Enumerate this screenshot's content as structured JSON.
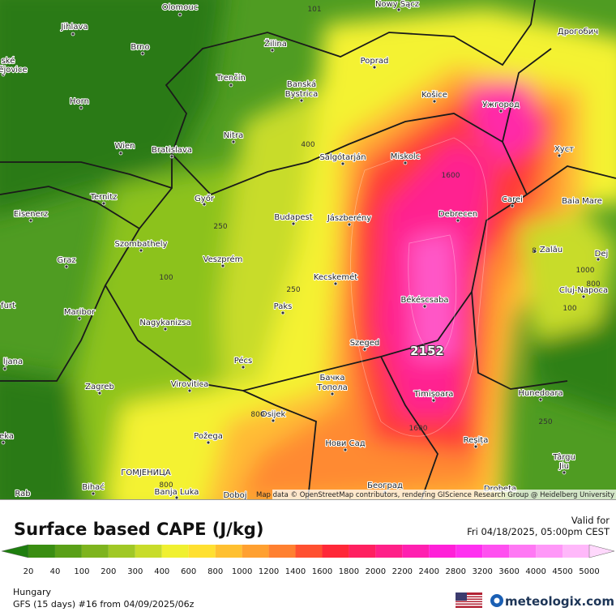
{
  "map": {
    "labels": [
      "Olomouc",
      "Jihlava",
      "Brno",
      "ské",
      "ějovice",
      "Horn",
      "Wien",
      "Bratislava",
      "Trenčín",
      "Žilina",
      "Banská",
      "Bystrica",
      "Poprad",
      "Nowy Sącz",
      "Košice",
      "Ужгород",
      "Дрогобич",
      "Nitra",
      "Salgótarján",
      "Miskolc",
      "Хуст",
      "Ternitz",
      "Győr",
      "Budapest",
      "Jászberény",
      "Debrecen",
      "Carei",
      "Baia Mare",
      "Eisenerz",
      "Szombathely",
      "Veszprém",
      "Graz",
      "Zalău",
      "Dej",
      "Cluj-Napoca",
      "Kecskemét",
      "Paks",
      "Békéscsaba",
      "furt",
      "Maribor",
      "Nagykanizsa",
      "Szeged",
      "ljana",
      "Pécs",
      "Virovitica",
      "Zagreb",
      "Бачка",
      "Топола",
      "Timișoara",
      "Hunedoara",
      "Osijek",
      "Požega",
      "eka",
      "Нови Сад",
      "Reșița",
      "Târgu",
      "Jiu",
      "ГОМЈЕНИЦА",
      "Bihać",
      "Banja Luka",
      "Doboj",
      "Београд",
      "Drobeta",
      "Rab"
    ],
    "contours": [
      "101",
      "400",
      "1600",
      "250",
      "100",
      "250",
      "8",
      "1000",
      "800",
      "100",
      "800",
      "1600",
      "250",
      "800"
    ],
    "max_value": "2152",
    "attribution": "Map data © OpenStreetMap contributors, rendering GIScience Research Group @ Heidelberg University"
  },
  "footer": {
    "title": "Surface based CAPE (J/kg)",
    "valid_label": "Valid for",
    "valid_time": "Fri 04/18/2025, 05:00pm CEST",
    "colorbar": {
      "levels": [
        20,
        40,
        100,
        200,
        300,
        400,
        600,
        800,
        1000,
        1200,
        1400,
        1600,
        1800,
        2000,
        2200,
        2400,
        2800,
        3200,
        3600,
        4000,
        4500,
        5000
      ],
      "colors": [
        "#1e7e0e",
        "#3a8e12",
        "#5aa018",
        "#7eb41e",
        "#a0c825",
        "#c8dc2a",
        "#f0f030",
        "#ffe030",
        "#ffc030",
        "#ffa030",
        "#ff8030",
        "#ff5030",
        "#ff2838",
        "#ff2060",
        "#ff2088",
        "#ff20b0",
        "#ff20d8",
        "#ff30f0",
        "#ff50f0",
        "#ff78f4",
        "#ff98f8",
        "#ffb8fa",
        "#ffd8fc"
      ]
    },
    "region": "Hungary",
    "model": "GFS (15 days) #16 from  04/09/2025/06z",
    "brand": "meteologix.com"
  }
}
